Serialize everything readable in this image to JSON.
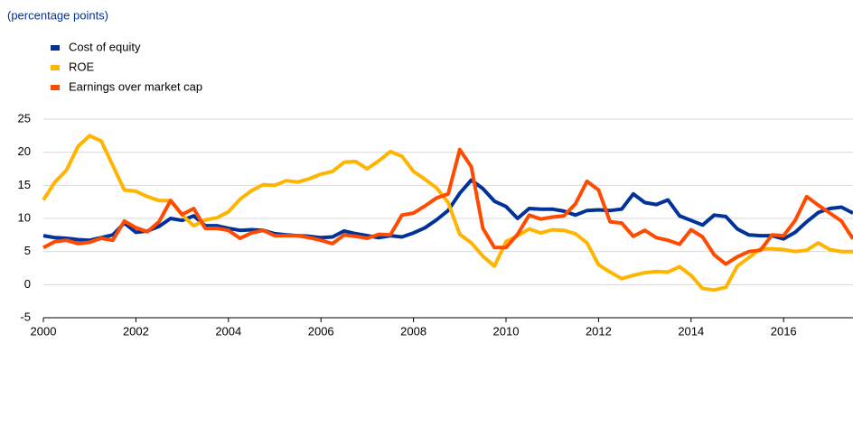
{
  "chart_data": {
    "type": "line",
    "subtitle": "(percentage points)",
    "x": [
      2000,
      2000.25,
      2000.5,
      2000.75,
      2001,
      2001.25,
      2001.5,
      2001.75,
      2002,
      2002.25,
      2002.5,
      2002.75,
      2003,
      2003.25,
      2003.5,
      2003.75,
      2004,
      2004.25,
      2004.5,
      2004.75,
      2005,
      2005.25,
      2005.5,
      2005.75,
      2006,
      2006.25,
      2006.5,
      2006.75,
      2007,
      2007.25,
      2007.5,
      2007.75,
      2008,
      2008.25,
      2008.5,
      2008.75,
      2009,
      2009.25,
      2009.5,
      2009.75,
      2010,
      2010.25,
      2010.5,
      2010.75,
      2011,
      2011.25,
      2011.5,
      2011.75,
      2012,
      2012.25,
      2012.5,
      2012.75,
      2013,
      2013.25,
      2013.5,
      2013.75,
      2014,
      2014.25,
      2014.5,
      2014.75,
      2015,
      2015.25,
      2015.5,
      2015.75,
      2016,
      2016.25,
      2016.5,
      2016.75,
      2017,
      2017.25,
      2017.5
    ],
    "series": [
      {
        "name": "Cost of equity",
        "color": "#003299",
        "values": [
          7.4,
          7.1,
          7.0,
          6.8,
          6.7,
          7.1,
          7.5,
          9.3,
          7.9,
          8.1,
          8.8,
          10.0,
          9.7,
          10.4,
          8.9,
          8.9,
          8.5,
          8.2,
          8.3,
          8.2,
          7.7,
          7.5,
          7.4,
          7.3,
          7.1,
          7.2,
          8.1,
          7.7,
          7.4,
          7.1,
          7.4,
          7.2,
          7.8,
          8.6,
          9.8,
          11.2,
          13.8,
          15.8,
          14.5,
          12.6,
          11.8,
          10.0,
          11.5,
          11.4,
          11.4,
          11.1,
          10.5,
          11.2,
          11.3,
          11.2,
          11.4,
          13.7,
          12.4,
          12.1,
          12.8,
          10.4,
          9.7,
          9.0,
          10.5,
          10.3,
          8.4,
          7.5,
          7.4,
          7.4,
          6.9,
          7.9,
          9.5,
          10.9,
          11.5,
          11.7,
          10.8
        ]
      },
      {
        "name": "ROE",
        "color": "#FFB400",
        "values": [
          12.8,
          15.5,
          17.3,
          20.9,
          22.5,
          21.7,
          18.0,
          14.3,
          14.1,
          13.3,
          12.7,
          12.7,
          10.5,
          8.9,
          9.8,
          10.1,
          11.0,
          12.9,
          14.2,
          15.1,
          15.0,
          15.7,
          15.5,
          16.0,
          16.7,
          17.1,
          18.5,
          18.6,
          17.5,
          18.7,
          20.1,
          19.4,
          17.1,
          15.9,
          14.6,
          12.4,
          7.6,
          6.3,
          4.3,
          2.8,
          6.5,
          7.4,
          8.4,
          7.8,
          8.3,
          8.2,
          7.7,
          6.3,
          3.0,
          1.9,
          0.9,
          1.4,
          1.8,
          2.0,
          1.9,
          2.7,
          1.4,
          -0.6,
          -0.8,
          -0.4,
          2.8,
          4.1,
          5.4,
          5.4,
          5.3,
          5.0,
          5.2,
          6.3,
          5.3,
          5.0,
          5.0
        ]
      },
      {
        "name": "Earnings over market cap",
        "color": "#FF4B00",
        "values": [
          5.6,
          6.5,
          6.7,
          6.2,
          6.4,
          7.0,
          6.7,
          9.6,
          8.6,
          8.0,
          9.5,
          12.7,
          10.6,
          11.5,
          8.5,
          8.5,
          8.2,
          7.0,
          7.8,
          8.2,
          7.4,
          7.4,
          7.4,
          7.1,
          6.7,
          6.2,
          7.5,
          7.3,
          7.0,
          7.6,
          7.5,
          10.5,
          10.8,
          11.9,
          13.1,
          13.7,
          20.4,
          17.8,
          8.5,
          5.6,
          5.6,
          7.6,
          10.5,
          9.9,
          10.2,
          10.4,
          12.2,
          15.6,
          14.3,
          9.5,
          9.3,
          7.3,
          8.2,
          7.1,
          6.7,
          6.1,
          8.3,
          7.2,
          4.5,
          3.1,
          4.2,
          5.0,
          5.2,
          7.5,
          7.4,
          9.7,
          13.3,
          12.0,
          10.8,
          9.6,
          6.9
        ]
      }
    ],
    "xlim": [
      2000,
      2017.5
    ],
    "xticks": [
      2000,
      2002,
      2004,
      2006,
      2008,
      2010,
      2012,
      2014,
      2016
    ],
    "ylim": [
      -5,
      25
    ],
    "yticks": [
      -5,
      0,
      5,
      10,
      15,
      20,
      25
    ],
    "grid": true,
    "legend": "top-left"
  }
}
